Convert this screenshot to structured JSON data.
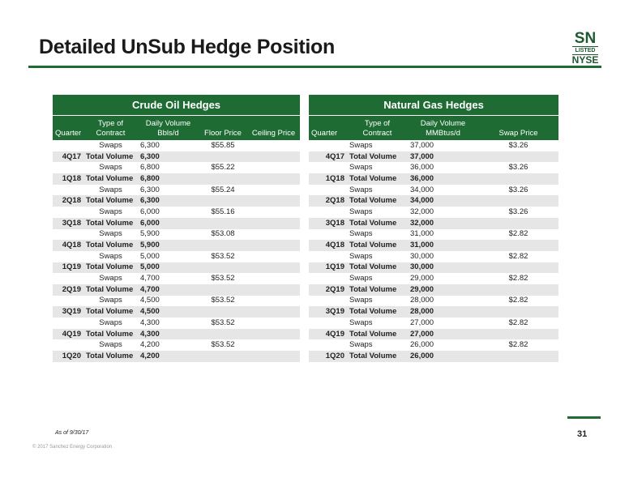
{
  "header": {
    "title": "Detailed UnSub Hedge Position",
    "logo": [
      "SN",
      "LISTED",
      "NYSE"
    ]
  },
  "tables": [
    {
      "title": "Crude Oil Hedges",
      "columns": [
        "Quarter",
        "Type of\nContract",
        "Daily Volume\nBbls/d",
        "Floor Price",
        "Ceiling Price"
      ],
      "rows": [
        [
          null,
          "Swaps",
          "6,300",
          "$55.85",
          null
        ],
        [
          "4Q17",
          "Total Volume",
          "6,300",
          null,
          null
        ],
        [
          null,
          "Swaps",
          "6,800",
          "$55.22",
          null
        ],
        [
          "1Q18",
          "Total Volume",
          "6,800",
          null,
          null
        ],
        [
          null,
          "Swaps",
          "6,300",
          "$55.24",
          null
        ],
        [
          "2Q18",
          "Total Volume",
          "6,300",
          null,
          null
        ],
        [
          null,
          "Swaps",
          "6,000",
          "$55.16",
          null
        ],
        [
          "3Q18",
          "Total Volume",
          "6,000",
          null,
          null
        ],
        [
          null,
          "Swaps",
          "5,900",
          "$53.08",
          null
        ],
        [
          "4Q18",
          "Total Volume",
          "5,900",
          null,
          null
        ],
        [
          null,
          "Swaps",
          "5,000",
          "$53.52",
          null
        ],
        [
          "1Q19",
          "Total Volume",
          "5,000",
          null,
          null
        ],
        [
          null,
          "Swaps",
          "4,700",
          "$53.52",
          null
        ],
        [
          "2Q19",
          "Total Volume",
          "4,700",
          null,
          null
        ],
        [
          null,
          "Swaps",
          "4,500",
          "$53.52",
          null
        ],
        [
          "3Q19",
          "Total Volume",
          "4,500",
          null,
          null
        ],
        [
          null,
          "Swaps",
          "4,300",
          "$53.52",
          null
        ],
        [
          "4Q19",
          "Total Volume",
          "4,300",
          null,
          null
        ],
        [
          null,
          "Swaps",
          "4,200",
          "$53.52",
          null
        ],
        [
          "1Q20",
          "Total Volume",
          "4,200",
          null,
          null
        ]
      ]
    },
    {
      "title": "Natural Gas Hedges",
      "columns": [
        "Quarter",
        "Type of Contract",
        "Daily Volume\nMMBtus/d",
        "Swap Price"
      ],
      "rows": [
        [
          null,
          "Swaps",
          "37,000",
          "$3.26"
        ],
        [
          "4Q17",
          "Total Volume",
          "37,000",
          null
        ],
        [
          null,
          "Swaps",
          "36,000",
          "$3.26"
        ],
        [
          "1Q18",
          "Total Volume",
          "36,000",
          null
        ],
        [
          null,
          "Swaps",
          "34,000",
          "$3.26"
        ],
        [
          "2Q18",
          "Total Volume",
          "34,000",
          null
        ],
        [
          null,
          "Swaps",
          "32,000",
          "$3.26"
        ],
        [
          "3Q18",
          "Total Volume",
          "32,000",
          null
        ],
        [
          null,
          "Swaps",
          "31,000",
          "$2.82"
        ],
        [
          "4Q18",
          "Total Volume",
          "31,000",
          null
        ],
        [
          null,
          "Swaps",
          "30,000",
          "$2.82"
        ],
        [
          "1Q19",
          "Total Volume",
          "30,000",
          null
        ],
        [
          null,
          "Swaps",
          "29,000",
          "$2.82"
        ],
        [
          "2Q19",
          "Total Volume",
          "29,000",
          null
        ],
        [
          null,
          "Swaps",
          "28,000",
          "$2.82"
        ],
        [
          "3Q19",
          "Total Volume",
          "28,000",
          null
        ],
        [
          null,
          "Swaps",
          "27,000",
          "$2.82"
        ],
        [
          "4Q19",
          "Total Volume",
          "27,000",
          null
        ],
        [
          null,
          "Swaps",
          "26,000",
          "$2.82"
        ],
        [
          "1Q20",
          "Total Volume",
          "26,000",
          null
        ]
      ]
    }
  ],
  "footer": {
    "note": "As of 9/30/17",
    "page": "31",
    "copyright": "© 2017 Sanchez Energy Corporation"
  }
}
